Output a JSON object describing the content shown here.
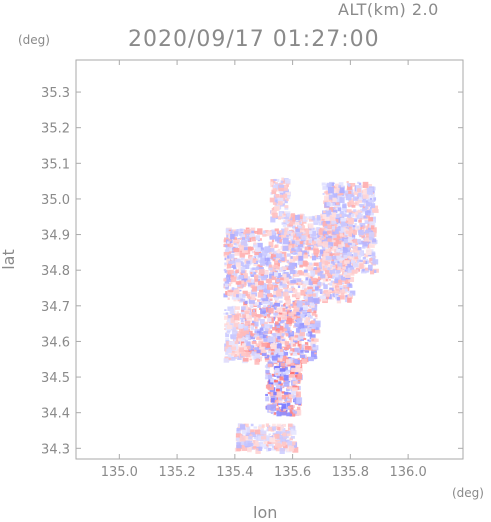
{
  "header": {
    "altitude": "ALT(km) 2.0",
    "timestamp": "2020/09/17 01:27:00"
  },
  "axes": {
    "y_unit": "(deg)",
    "x_unit": "(deg)"
  },
  "chart_data": {
    "type": "heatmap",
    "title": "2020/09/17 01:27:00",
    "subtitle": "ALT(km) 2.0",
    "xlabel": "lon",
    "ylabel": "lat",
    "xlim": [
      134.85,
      136.19
    ],
    "ylim": [
      34.27,
      35.39
    ],
    "x_ticks": [
      135.0,
      135.2,
      135.4,
      135.6,
      135.8,
      136.0
    ],
    "x_tick_labels": [
      "135.0",
      "135.2",
      "135.4",
      "135.6",
      "135.8",
      "136.0"
    ],
    "y_ticks": [
      34.3,
      34.4,
      34.5,
      34.6,
      34.7,
      34.8,
      34.9,
      35.0,
      35.1,
      35.2,
      35.3
    ],
    "y_tick_labels": [
      "34.3",
      "34.4",
      "34.5",
      "34.6",
      "34.7",
      "34.8",
      "34.9",
      "35.0",
      "35.1",
      "35.2",
      "35.3"
    ],
    "colormap": {
      "negative": "#6666ff",
      "positive": "#ff6666",
      "zero": "#ffffff"
    },
    "regions": [
      {
        "lon": [
          135.5,
          135.62
        ],
        "lat": [
          34.4,
          34.55
        ],
        "intensity": 0.8
      },
      {
        "lon": [
          135.42,
          135.68
        ],
        "lat": [
          34.55,
          34.72
        ],
        "intensity": 0.6
      },
      {
        "lon": [
          135.36,
          135.8
        ],
        "lat": [
          34.72,
          34.92
        ],
        "intensity": 0.45
      },
      {
        "lon": [
          135.55,
          135.8
        ],
        "lat": [
          34.88,
          34.96
        ],
        "intensity": 0.35
      },
      {
        "lon": [
          135.7,
          135.88
        ],
        "lat": [
          34.8,
          35.05
        ],
        "intensity": 0.4
      },
      {
        "lon": [
          135.52,
          135.58
        ],
        "lat": [
          34.95,
          35.06
        ],
        "intensity": 0.3
      },
      {
        "lon": [
          135.4,
          135.6
        ],
        "lat": [
          34.3,
          34.37
        ],
        "intensity": 0.35
      },
      {
        "lon": [
          135.36,
          135.44
        ],
        "lat": [
          34.55,
          34.7
        ],
        "intensity": 0.3
      }
    ]
  }
}
